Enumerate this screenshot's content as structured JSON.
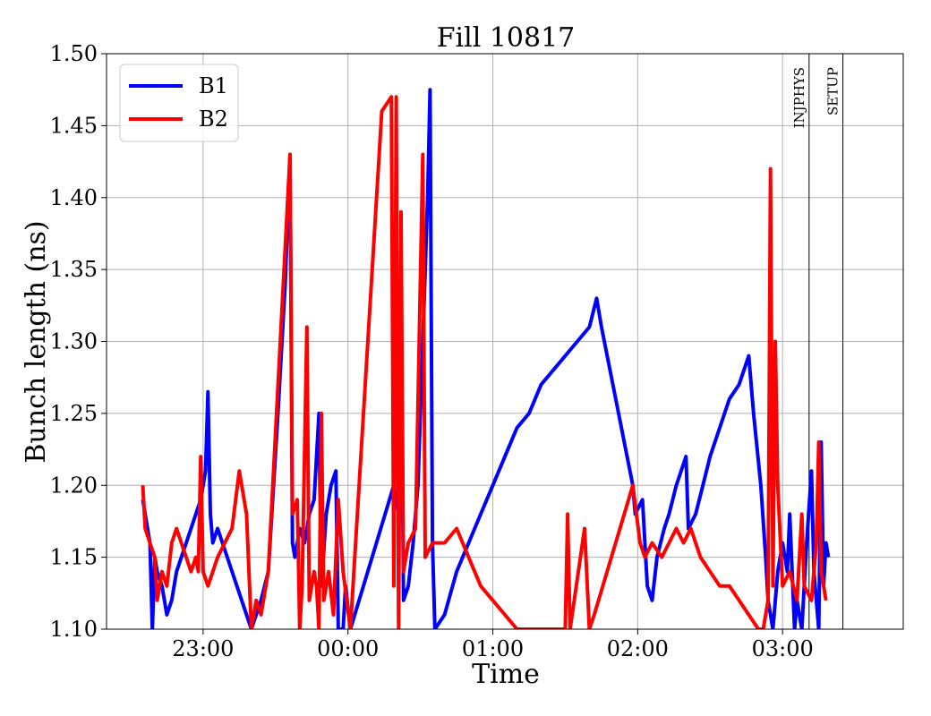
{
  "chart_data": {
    "type": "line",
    "title": "Fill 10817",
    "xlabel": "Time",
    "ylabel": "Bunch length (ns)",
    "xlim": [
      "22:20",
      "03:50"
    ],
    "ylim": [
      1.1,
      1.5
    ],
    "x_ticks": [
      "23:00",
      "00:00",
      "01:00",
      "02:00",
      "03:00"
    ],
    "y_ticks": [
      "1.10",
      "1.15",
      "1.20",
      "1.25",
      "1.30",
      "1.35",
      "1.40",
      "1.45",
      "1.50"
    ],
    "grid": true,
    "legend_position": "top-left",
    "mode_markers": [
      {
        "label": "INJPHYS",
        "time": "03:11"
      },
      {
        "label": "SETUP",
        "time": "03:25"
      }
    ],
    "series": [
      {
        "name": "B1",
        "color": "#0000ff",
        "points": [
          [
            "22:35",
            1.19
          ],
          [
            "22:37",
            1.17
          ],
          [
            "22:38",
            1.16
          ],
          [
            "22:39",
            1.1
          ],
          [
            "22:40",
            1.15
          ],
          [
            "22:41",
            1.14
          ],
          [
            "22:43",
            1.13
          ],
          [
            "22:45",
            1.11
          ],
          [
            "22:47",
            1.12
          ],
          [
            "22:49",
            1.14
          ],
          [
            "22:51",
            1.15
          ],
          [
            "22:53",
            1.16
          ],
          [
            "22:55",
            1.17
          ],
          [
            "22:57",
            1.18
          ],
          [
            "22:59",
            1.19
          ],
          [
            "23:01",
            1.21
          ],
          [
            "23:02",
            1.265
          ],
          [
            "23:03",
            1.18
          ],
          [
            "23:04",
            1.16
          ],
          [
            "23:06",
            1.17
          ],
          [
            "23:20",
            1.1
          ],
          [
            "23:24",
            1.12
          ],
          [
            "23:27",
            1.14
          ],
          [
            "23:31",
            1.25
          ],
          [
            "23:34",
            1.34
          ],
          [
            "23:36",
            1.43
          ],
          [
            "23:37",
            1.16
          ],
          [
            "23:38",
            1.15
          ],
          [
            "23:40",
            1.17
          ],
          [
            "23:42",
            1.16
          ],
          [
            "23:44",
            1.18
          ],
          [
            "23:46",
            1.19
          ],
          [
            "23:48",
            1.25
          ],
          [
            "23:49",
            1.13
          ],
          [
            "23:51",
            1.18
          ],
          [
            "23:53",
            1.2
          ],
          [
            "23:55",
            1.21
          ],
          [
            "23:56",
            1.1
          ],
          [
            "23:58",
            1.1
          ],
          [
            "23:59",
            1.13
          ],
          [
            "24:01",
            1.1
          ],
          [
            "24:10",
            1.15
          ],
          [
            "24:19",
            1.2
          ],
          [
            "24:21",
            1.18
          ],
          [
            "24:22",
            1.35
          ],
          [
            "24:23",
            1.12
          ],
          [
            "24:25",
            1.13
          ],
          [
            "24:27",
            1.16
          ],
          [
            "24:29",
            1.2
          ],
          [
            "24:31",
            1.3
          ],
          [
            "24:33",
            1.4
          ],
          [
            "24:34",
            1.475
          ],
          [
            "24:35",
            1.16
          ],
          [
            "24:36",
            1.1
          ],
          [
            "24:40",
            1.11
          ],
          [
            "24:45",
            1.14
          ],
          [
            "24:50",
            1.16
          ],
          [
            "24:55",
            1.18
          ],
          [
            "25:00",
            1.2
          ],
          [
            "25:05",
            1.22
          ],
          [
            "25:10",
            1.24
          ],
          [
            "25:15",
            1.25
          ],
          [
            "25:20",
            1.27
          ],
          [
            "25:25",
            1.28
          ],
          [
            "25:30",
            1.29
          ],
          [
            "25:35",
            1.3
          ],
          [
            "25:40",
            1.31
          ],
          [
            "25:43",
            1.33
          ],
          [
            "25:45",
            1.31
          ],
          [
            "25:58",
            1.2
          ],
          [
            "25:59",
            1.18
          ],
          [
            "26:02",
            1.19
          ],
          [
            "26:04",
            1.13
          ],
          [
            "26:06",
            1.12
          ],
          [
            "26:08",
            1.15
          ],
          [
            "26:11",
            1.17
          ],
          [
            "26:13",
            1.18
          ],
          [
            "26:16",
            1.2
          ],
          [
            "26:18",
            1.21
          ],
          [
            "26:20",
            1.22
          ],
          [
            "26:21",
            1.17
          ],
          [
            "26:24",
            1.18
          ],
          [
            "26:27",
            1.2
          ],
          [
            "26:30",
            1.22
          ],
          [
            "26:34",
            1.24
          ],
          [
            "26:38",
            1.26
          ],
          [
            "26:42",
            1.27
          ],
          [
            "26:46",
            1.29
          ],
          [
            "26:48",
            1.25
          ],
          [
            "26:51",
            1.2
          ],
          [
            "26:53",
            1.15
          ],
          [
            "26:54",
            1.12
          ],
          [
            "26:56",
            1.1
          ],
          [
            "26:58",
            1.14
          ],
          [
            "27:00",
            1.16
          ],
          [
            "27:02",
            1.14
          ],
          [
            "27:03",
            1.18
          ],
          [
            "27:05",
            1.1
          ],
          [
            "27:06",
            1.12
          ],
          [
            "27:08",
            1.1
          ],
          [
            "27:10",
            1.16
          ],
          [
            "27:12",
            1.21
          ],
          [
            "27:13",
            1.14
          ],
          [
            "27:15",
            1.1
          ],
          [
            "27:16",
            1.23
          ],
          [
            "27:17",
            1.13
          ],
          [
            "27:18",
            1.16
          ],
          [
            "27:19",
            1.15
          ]
        ]
      },
      {
        "name": "B2",
        "color": "#ff0000",
        "points": [
          [
            "22:35",
            1.2
          ],
          [
            "22:36",
            1.17
          ],
          [
            "22:38",
            1.16
          ],
          [
            "22:40",
            1.15
          ],
          [
            "22:41",
            1.12
          ],
          [
            "22:43",
            1.14
          ],
          [
            "22:45",
            1.13
          ],
          [
            "22:47",
            1.16
          ],
          [
            "22:49",
            1.17
          ],
          [
            "22:51",
            1.16
          ],
          [
            "22:53",
            1.15
          ],
          [
            "22:55",
            1.14
          ],
          [
            "22:57",
            1.15
          ],
          [
            "22:58",
            1.14
          ],
          [
            "22:59",
            1.22
          ],
          [
            "23:00",
            1.14
          ],
          [
            "23:02",
            1.13
          ],
          [
            "23:04",
            1.14
          ],
          [
            "23:06",
            1.15
          ],
          [
            "23:12",
            1.17
          ],
          [
            "23:15",
            1.21
          ],
          [
            "23:18",
            1.18
          ],
          [
            "23:20",
            1.1
          ],
          [
            "23:22",
            1.12
          ],
          [
            "23:24",
            1.11
          ],
          [
            "23:27",
            1.14
          ],
          [
            "23:36",
            1.43
          ],
          [
            "23:37",
            1.18
          ],
          [
            "23:39",
            1.19
          ],
          [
            "23:40",
            1.1
          ],
          [
            "23:41",
            1.13
          ],
          [
            "23:43",
            1.31
          ],
          [
            "23:44",
            1.12
          ],
          [
            "23:46",
            1.14
          ],
          [
            "23:47",
            1.13
          ],
          [
            "23:48",
            1.1
          ],
          [
            "23:49",
            1.25
          ],
          [
            "23:50",
            1.12
          ],
          [
            "23:52",
            1.14
          ],
          [
            "23:54",
            1.11
          ],
          [
            "23:56",
            1.19
          ],
          [
            "23:58",
            1.14
          ],
          [
            "24:01",
            1.1
          ],
          [
            "24:14",
            1.46
          ],
          [
            "24:18",
            1.47
          ],
          [
            "24:19",
            1.13
          ],
          [
            "24:20",
            1.47
          ],
          [
            "24:21",
            1.1
          ],
          [
            "24:22",
            1.39
          ],
          [
            "24:23",
            1.14
          ],
          [
            "24:25",
            1.16
          ],
          [
            "24:28",
            1.17
          ],
          [
            "24:31",
            1.43
          ],
          [
            "24:32",
            1.15
          ],
          [
            "24:35",
            1.16
          ],
          [
            "24:40",
            1.16
          ],
          [
            "24:45",
            1.17
          ],
          [
            "24:50",
            1.15
          ],
          [
            "24:55",
            1.13
          ],
          [
            "25:00",
            1.12
          ],
          [
            "25:05",
            1.11
          ],
          [
            "25:10",
            1.1
          ],
          [
            "25:14",
            1.1
          ],
          [
            "25:30",
            1.1
          ],
          [
            "25:31",
            1.18
          ],
          [
            "25:32",
            1.1
          ],
          [
            "25:38",
            1.17
          ],
          [
            "25:40",
            1.1
          ],
          [
            "25:42",
            1.11
          ],
          [
            "25:58",
            1.2
          ],
          [
            "26:01",
            1.16
          ],
          [
            "26:03",
            1.15
          ],
          [
            "26:06",
            1.16
          ],
          [
            "26:10",
            1.15
          ],
          [
            "26:13",
            1.16
          ],
          [
            "26:16",
            1.17
          ],
          [
            "26:19",
            1.16
          ],
          [
            "26:22",
            1.17
          ],
          [
            "26:26",
            1.15
          ],
          [
            "26:30",
            1.14
          ],
          [
            "26:34",
            1.13
          ],
          [
            "26:38",
            1.13
          ],
          [
            "26:42",
            1.12
          ],
          [
            "26:46",
            1.11
          ],
          [
            "26:50",
            1.1
          ],
          [
            "26:52",
            1.1
          ],
          [
            "26:54",
            1.12
          ],
          [
            "26:55",
            1.42
          ],
          [
            "26:56",
            1.13
          ],
          [
            "26:57",
            1.3
          ],
          [
            "26:58",
            1.2
          ],
          [
            "27:00",
            1.13
          ],
          [
            "27:03",
            1.14
          ],
          [
            "27:06",
            1.12
          ],
          [
            "27:08",
            1.18
          ],
          [
            "27:09",
            1.13
          ],
          [
            "27:12",
            1.12
          ],
          [
            "27:14",
            1.16
          ],
          [
            "27:15",
            1.23
          ],
          [
            "27:16",
            1.14
          ],
          [
            "27:17",
            1.13
          ],
          [
            "27:18",
            1.12
          ]
        ]
      }
    ]
  }
}
